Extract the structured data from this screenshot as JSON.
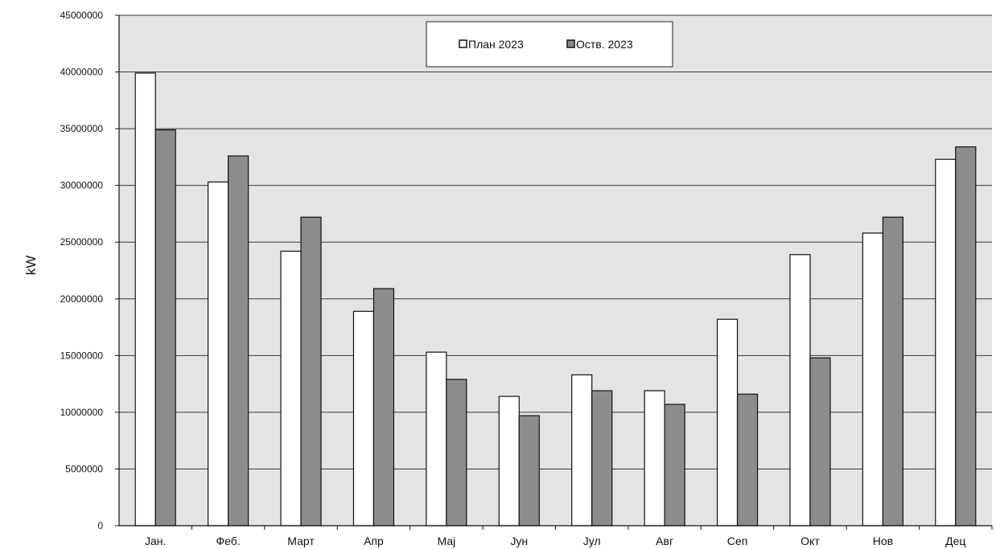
{
  "chart_data": {
    "type": "bar",
    "title": "",
    "xlabel": "",
    "ylabel": "kW",
    "ylim": [
      0,
      45000000
    ],
    "yticks": [
      0,
      5000000,
      10000000,
      15000000,
      20000000,
      25000000,
      30000000,
      35000000,
      40000000,
      45000000
    ],
    "grid": true,
    "legend_position": "top-center",
    "categories": [
      "Јан.",
      "Феб.",
      "Март",
      "Апр",
      "Мај",
      "Јун",
      "Јул",
      "Авг",
      "Сеп",
      "Окт",
      "Нов",
      "Дец"
    ],
    "series": [
      {
        "name": "План 2023",
        "color": "#ffffff",
        "values": [
          39900000,
          30300000,
          24200000,
          18900000,
          15300000,
          11400000,
          13300000,
          11900000,
          18200000,
          23900000,
          25800000,
          32300000
        ]
      },
      {
        "name": "Оств. 2023",
        "color": "#8c8c8c",
        "values": [
          34900000,
          32600000,
          27200000,
          20900000,
          12900000,
          9700000,
          11900000,
          10700000,
          11600000,
          14800000,
          27200000,
          33400000
        ]
      }
    ]
  },
  "colors": {
    "plot_background": "#e4e4e4",
    "gridline": "#3a3a3a",
    "bar_outline": "#111111"
  }
}
